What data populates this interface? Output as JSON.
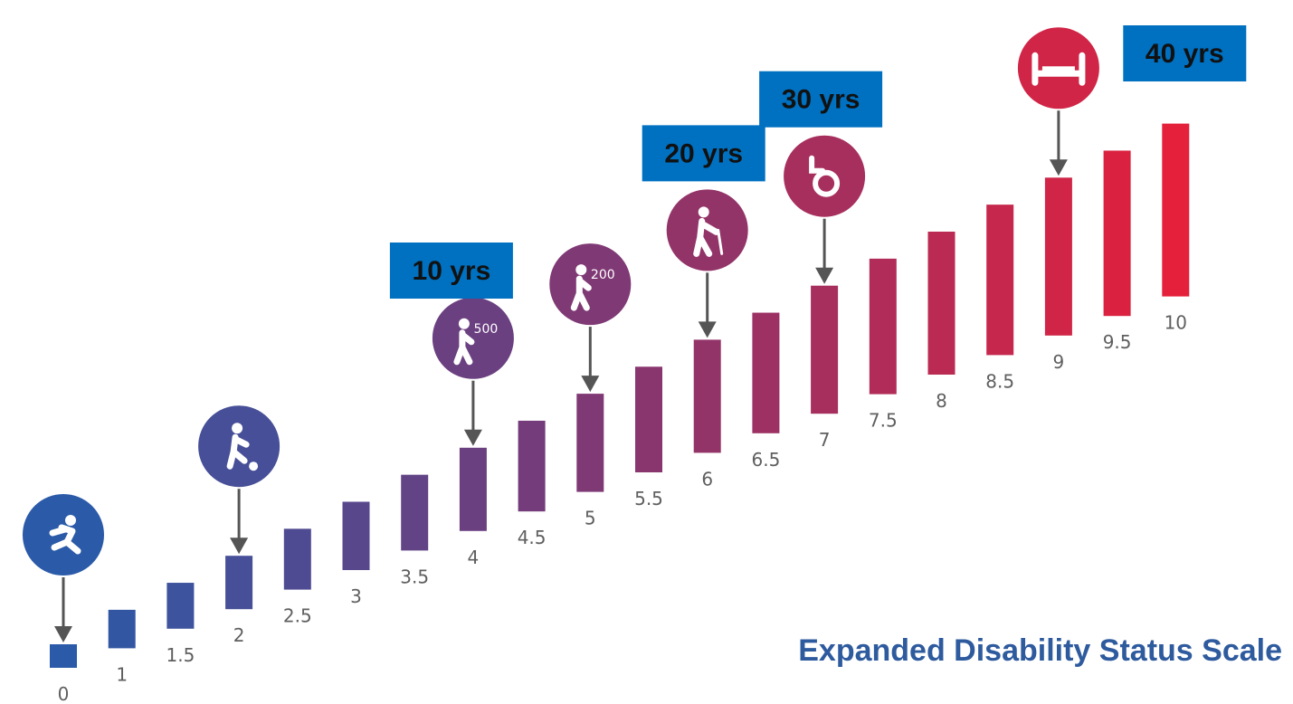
{
  "chart_data": {
    "type": "bar",
    "title": "Expanded Disability Status Scale",
    "categories": [
      "0",
      "1",
      "1.5",
      "2",
      "2.5",
      "3",
      "3.5",
      "4",
      "4.5",
      "5",
      "5.5",
      "6",
      "6.5",
      "7",
      "7.5",
      "8",
      "8.5",
      "9",
      "9.5",
      "10"
    ],
    "values": [
      0,
      1,
      1.5,
      2,
      2.5,
      3,
      3.5,
      4,
      4.5,
      5,
      5.5,
      6,
      6.5,
      7,
      7.5,
      8,
      8.5,
      9,
      9.5,
      10
    ],
    "color_start": "#2a5aa8",
    "color_mid": "#7a3a78",
    "color_end": "#e4203a",
    "milestones": [
      {
        "score": "0",
        "icon": "running-person-icon"
      },
      {
        "score": "2",
        "icon": "person-kicking-ball-icon"
      },
      {
        "score": "4",
        "icon": "walking-500-icon",
        "label": "500",
        "years": "10 yrs"
      },
      {
        "score": "5",
        "icon": "walking-200-icon",
        "label": "200"
      },
      {
        "score": "6",
        "icon": "person-with-cane-icon",
        "years": "20 yrs"
      },
      {
        "score": "7",
        "icon": "wheelchair-icon",
        "years": "30 yrs"
      },
      {
        "score": "9",
        "icon": "bed-icon"
      },
      {
        "score": "10",
        "years": "40 yrs"
      }
    ],
    "badge_color": "#0070c0"
  },
  "footer": {
    "title": "Expanded Disability Status Scale"
  }
}
